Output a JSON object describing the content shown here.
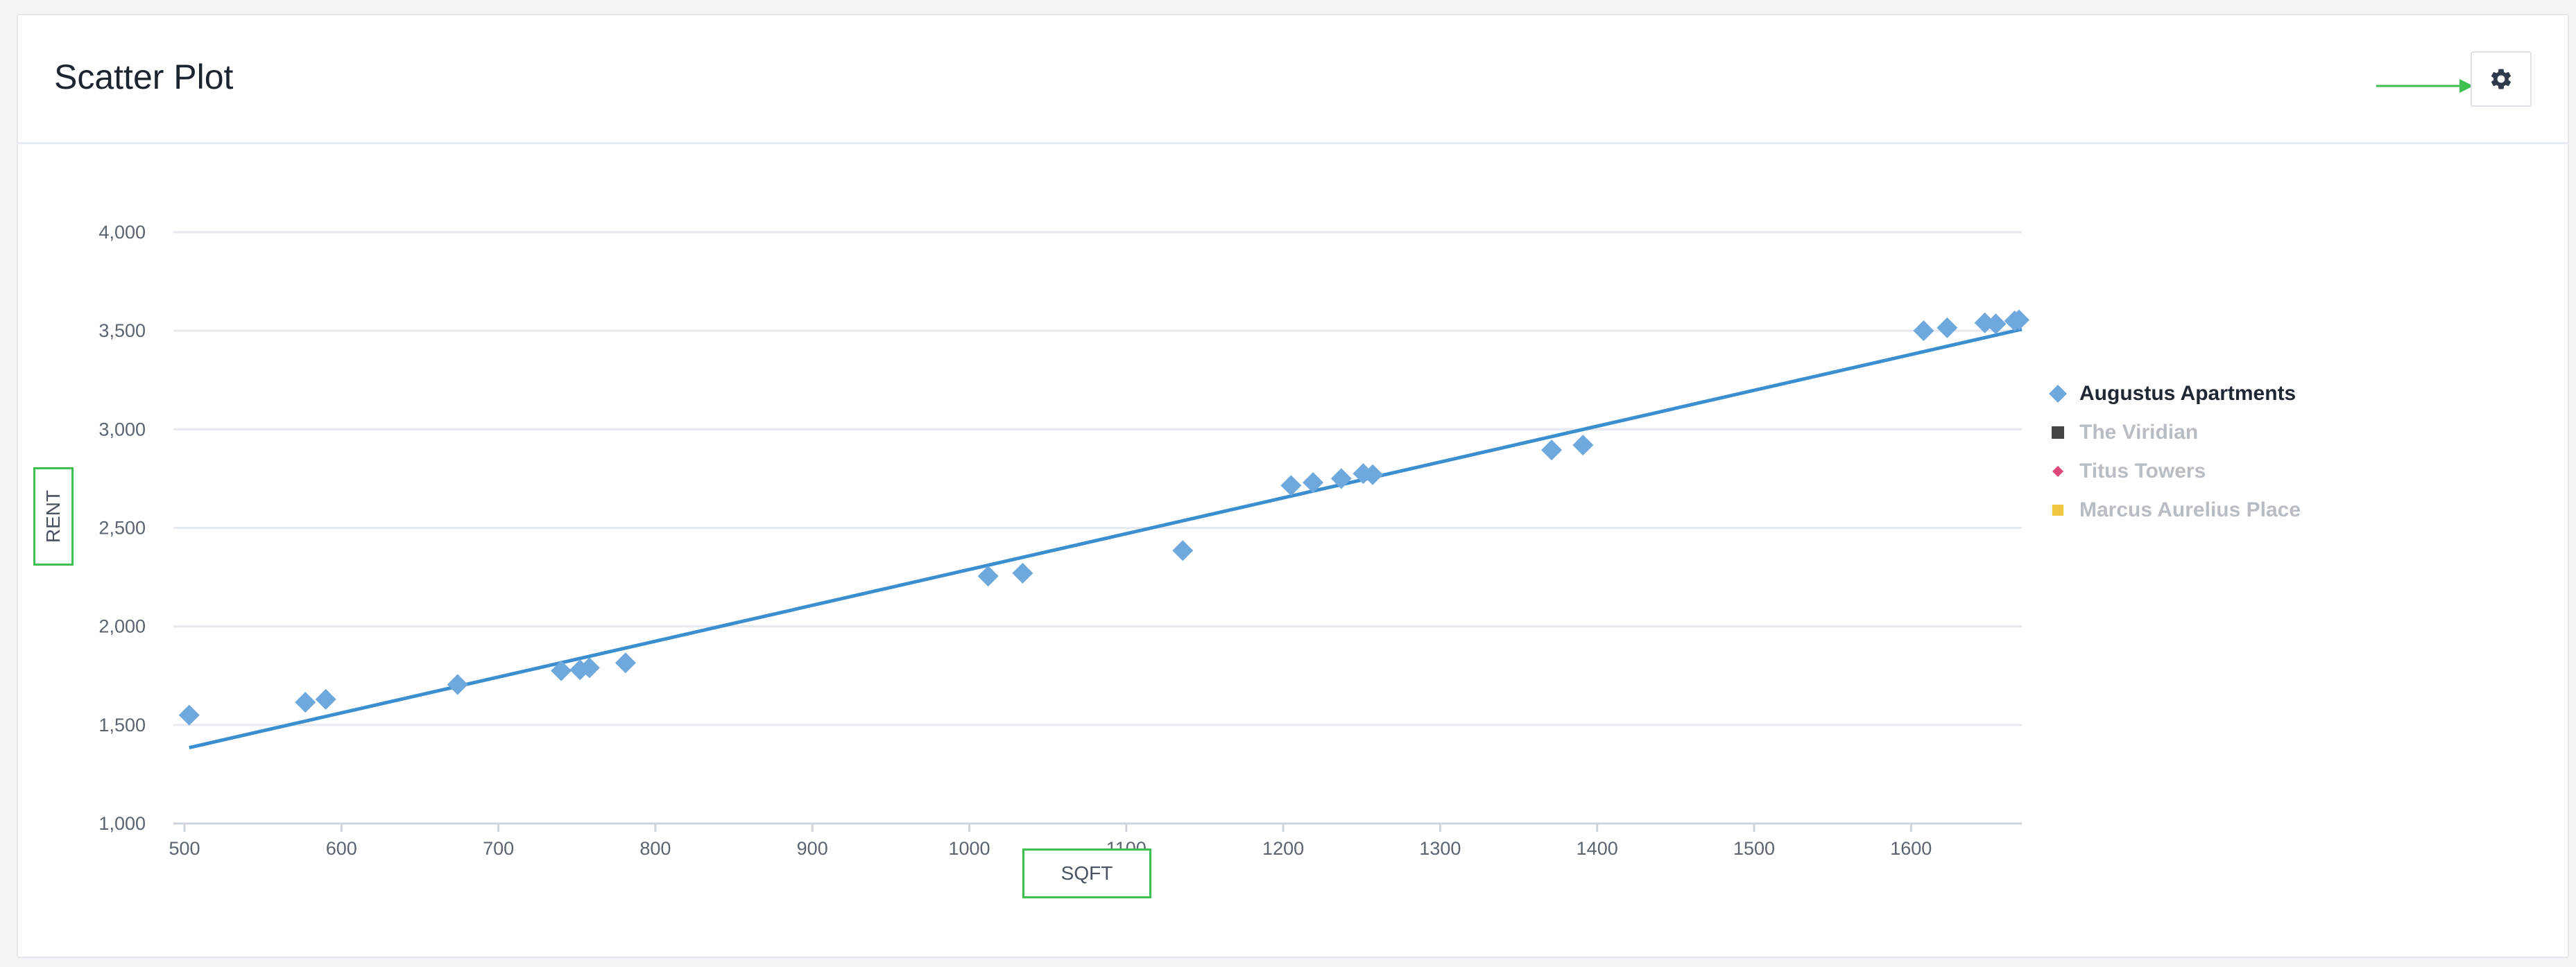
{
  "card": {
    "title": "Scatter Plot",
    "settings_icon": "gear-icon"
  },
  "colors": {
    "series": "#6fa8dc",
    "trendline": "#3b8fd0",
    "grid": "#e6e9ed",
    "annotation": "#3fbf4f"
  },
  "chart_data": {
    "type": "scatter",
    "title": "",
    "xlabel": "SQFT",
    "ylabel": "RENT",
    "xlim": [
      500,
      1680
    ],
    "ylim": [
      1000,
      4000
    ],
    "x_ticks": [
      "500",
      "600",
      "700",
      "800",
      "900",
      "1000",
      "1100",
      "1200",
      "1300",
      "1400",
      "1500",
      "1600"
    ],
    "y_ticks": [
      "1,000",
      "1,500",
      "2,000",
      "2,500",
      "3,000",
      "3,500",
      "4,000"
    ],
    "grid": true,
    "legend_position": "right",
    "series": [
      {
        "name": "Augustus Apartments",
        "marker": "diamond",
        "color": "#6fa8dc",
        "points": [
          {
            "x": 503,
            "y": 1550
          },
          {
            "x": 577,
            "y": 1615
          },
          {
            "x": 590,
            "y": 1630
          },
          {
            "x": 674,
            "y": 1705
          },
          {
            "x": 740,
            "y": 1775
          },
          {
            "x": 752,
            "y": 1780
          },
          {
            "x": 758,
            "y": 1790
          },
          {
            "x": 781,
            "y": 1815
          },
          {
            "x": 1012,
            "y": 2255
          },
          {
            "x": 1034,
            "y": 2270
          },
          {
            "x": 1136,
            "y": 2385
          },
          {
            "x": 1205,
            "y": 2715
          },
          {
            "x": 1219,
            "y": 2730
          },
          {
            "x": 1237,
            "y": 2750
          },
          {
            "x": 1251,
            "y": 2775
          },
          {
            "x": 1257,
            "y": 2770
          },
          {
            "x": 1371,
            "y": 2895
          },
          {
            "x": 1391,
            "y": 2920
          },
          {
            "x": 1608,
            "y": 3500
          },
          {
            "x": 1623,
            "y": 3515
          },
          {
            "x": 1647,
            "y": 3540
          },
          {
            "x": 1654,
            "y": 3535
          },
          {
            "x": 1666,
            "y": 3550
          },
          {
            "x": 1673,
            "y": 3555
          }
        ],
        "trendline": [
          {
            "x": 503,
            "y": 1385
          },
          {
            "x": 1680,
            "y": 3525
          }
        ]
      }
    ],
    "legend": [
      {
        "label": "Augustus Apartments",
        "marker": "diamond",
        "color": "#6fa8dc",
        "state": "active"
      },
      {
        "label": "The Viridian",
        "marker": "square",
        "color": "#444444",
        "state": "dim"
      },
      {
        "label": "Titus Towers",
        "marker": "diamond-small",
        "color": "#e0457b",
        "state": "dim"
      },
      {
        "label": "Marcus Aurelius Place",
        "marker": "square-small",
        "color": "#f2c744",
        "state": "dim"
      }
    ]
  }
}
